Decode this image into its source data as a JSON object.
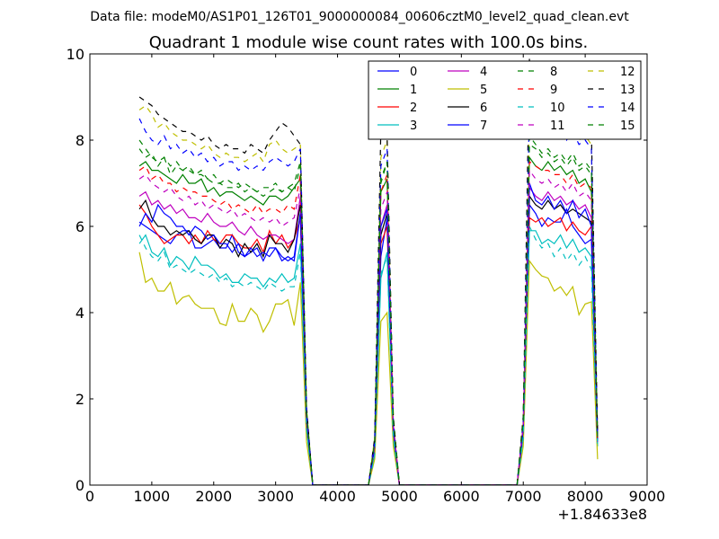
{
  "chart_data": {
    "type": "line",
    "suptitle": "Data file: modeM0/AS1P01_126T01_9000000084_00606cztM0_level2_quad_clean.evt",
    "title": "Quadrant 1 module wise count rates with 100.0s bins.",
    "xlabel": "",
    "ylabel": "",
    "xlim": [
      0,
      9000
    ],
    "ylim": [
      0,
      10
    ],
    "xticks": [
      0,
      1000,
      2000,
      3000,
      4000,
      5000,
      6000,
      7000,
      8000,
      9000
    ],
    "yticks": [
      0,
      2,
      4,
      6,
      8,
      10
    ],
    "x_offset_label": "+1.84633e8",
    "legend_position": "top-right",
    "legend_columns": 4,
    "x": [
      800,
      900,
      1000,
      1100,
      1200,
      1300,
      1400,
      1500,
      1600,
      1700,
      1800,
      1900,
      2000,
      2100,
      2200,
      2300,
      2400,
      2500,
      2600,
      2700,
      2800,
      2900,
      3000,
      3100,
      3200,
      3300,
      3400,
      3500,
      3600,
      4500,
      4600,
      4700,
      4800,
      4900,
      5000,
      6900,
      7000,
      7100,
      7200,
      7300,
      7400,
      7500,
      7600,
      7700,
      7800,
      7900,
      8000,
      8100,
      8200
    ],
    "series": [
      {
        "name": "0",
        "color": "#0000ff",
        "dash": false,
        "values": [
          6.1,
          6.0,
          5.9,
          5.8,
          5.7,
          5.6,
          5.8,
          5.9,
          5.9,
          5.5,
          5.5,
          5.6,
          5.7,
          5.5,
          5.5,
          5.8,
          5.4,
          5.3,
          5.4,
          5.5,
          5.2,
          5.5,
          5.5,
          5.2,
          5.3,
          5.2,
          6.3,
          1.5,
          0,
          0,
          0.8,
          5.3,
          6.2,
          1.2,
          0,
          0,
          1.2,
          6.5,
          6.3,
          6.0,
          6.2,
          6.1,
          6.1,
          6.4,
          6.0,
          5.8,
          5.6,
          5.7,
          1.0
        ]
      },
      {
        "name": "1",
        "color": "#008000",
        "dash": false,
        "values": [
          7.4,
          7.5,
          7.3,
          7.3,
          7.2,
          7.1,
          7.0,
          7.2,
          7.0,
          7.0,
          7.1,
          6.8,
          6.9,
          6.7,
          6.8,
          6.8,
          6.7,
          6.6,
          6.7,
          6.6,
          6.5,
          6.7,
          6.7,
          6.6,
          6.7,
          6.9,
          7.1,
          1.6,
          0,
          0,
          1.0,
          6.8,
          7.1,
          1.4,
          0,
          0,
          1.4,
          7.6,
          7.4,
          7.3,
          7.5,
          7.3,
          7.4,
          7.2,
          7.3,
          7.0,
          7.1,
          6.8,
          1.1
        ]
      },
      {
        "name": "2",
        "color": "#ff0000",
        "dash": false,
        "values": [
          6.5,
          6.3,
          6.0,
          5.8,
          5.6,
          5.7,
          5.8,
          5.8,
          5.6,
          5.8,
          5.6,
          5.9,
          5.7,
          5.6,
          5.8,
          5.8,
          5.6,
          5.5,
          5.5,
          5.7,
          5.4,
          5.9,
          5.6,
          5.8,
          5.5,
          5.7,
          6.2,
          1.5,
          0,
          0,
          0.8,
          5.6,
          6.0,
          1.3,
          0,
          0,
          1.3,
          6.2,
          6.1,
          6.2,
          6.0,
          6.1,
          6.2,
          5.9,
          6.1,
          5.9,
          5.8,
          6.0,
          1.0
        ]
      },
      {
        "name": "3",
        "color": "#00bfbf",
        "dash": false,
        "values": [
          5.6,
          5.8,
          5.4,
          5.3,
          5.5,
          5.1,
          5.3,
          5.2,
          5.0,
          5.3,
          5.1,
          5.1,
          5.0,
          4.8,
          4.9,
          4.7,
          4.7,
          4.9,
          4.8,
          4.8,
          4.6,
          4.8,
          4.7,
          4.9,
          4.7,
          4.8,
          5.6,
          1.3,
          0,
          0,
          0.7,
          4.8,
          5.4,
          1.1,
          0,
          0,
          1.1,
          5.9,
          5.9,
          5.6,
          5.7,
          5.6,
          5.8,
          5.5,
          5.7,
          5.4,
          5.5,
          5.3,
          0.9
        ]
      },
      {
        "name": "4",
        "color": "#bf00bf",
        "dash": false,
        "values": [
          6.7,
          6.8,
          6.5,
          6.6,
          6.4,
          6.5,
          6.3,
          6.4,
          6.2,
          6.2,
          6.1,
          6.3,
          6.1,
          6.0,
          6.0,
          6.1,
          5.9,
          5.8,
          6.0,
          5.8,
          5.7,
          5.8,
          5.8,
          5.7,
          5.6,
          5.7,
          6.7,
          1.6,
          0,
          0,
          0.9,
          6.0,
          6.5,
          1.4,
          0,
          0,
          1.4,
          6.9,
          6.7,
          6.6,
          6.8,
          6.6,
          6.7,
          6.5,
          6.6,
          6.4,
          6.5,
          6.2,
          1.0
        ]
      },
      {
        "name": "5",
        "color": "#bfbf00",
        "dash": false,
        "values": [
          5.4,
          4.7,
          4.8,
          4.5,
          4.5,
          4.7,
          4.2,
          4.35,
          4.4,
          4.2,
          4.1,
          4.1,
          4.1,
          3.75,
          3.7,
          4.2,
          3.8,
          3.8,
          4.1,
          3.95,
          3.55,
          3.8,
          4.2,
          4.2,
          4.3,
          3.7,
          4.7,
          1.0,
          0,
          0,
          0.6,
          3.8,
          4.0,
          0.9,
          0,
          0,
          0.9,
          5.2,
          5.0,
          4.85,
          4.8,
          4.5,
          4.6,
          4.4,
          4.6,
          3.95,
          4.2,
          4.25,
          0.6
        ]
      },
      {
        "name": "6",
        "color": "#000000",
        "dash": false,
        "values": [
          6.4,
          6.6,
          6.2,
          6.0,
          6.0,
          5.8,
          5.9,
          5.8,
          5.9,
          5.7,
          5.6,
          5.8,
          5.8,
          5.5,
          5.7,
          5.6,
          5.3,
          5.6,
          5.4,
          5.6,
          5.3,
          5.8,
          5.6,
          5.6,
          5.4,
          5.7,
          6.5,
          1.5,
          0,
          0,
          0.9,
          5.8,
          6.3,
          1.3,
          0,
          0,
          1.3,
          6.7,
          6.5,
          6.4,
          6.6,
          6.4,
          6.5,
          6.3,
          6.4,
          6.3,
          6.2,
          6.1,
          1.0
        ]
      },
      {
        "name": "7",
        "color": "#0000ff",
        "dash": false,
        "values": [
          6.0,
          6.3,
          6.1,
          6.5,
          6.3,
          6.2,
          6.0,
          6.0,
          5.8,
          6.0,
          5.9,
          5.7,
          5.8,
          5.6,
          5.6,
          5.4,
          5.6,
          5.3,
          5.5,
          5.3,
          5.4,
          5.3,
          5.5,
          5.3,
          5.2,
          5.3,
          6.3,
          1.5,
          0,
          0,
          0.9,
          6.0,
          6.4,
          1.3,
          0,
          0,
          1.3,
          7.0,
          6.6,
          6.5,
          6.7,
          6.4,
          6.6,
          6.3,
          6.6,
          6.2,
          6.4,
          6.0,
          1.0
        ]
      },
      {
        "name": "8",
        "color": "#008000",
        "dash": true,
        "values": [
          7.8,
          7.6,
          7.7,
          7.4,
          7.6,
          7.2,
          7.4,
          7.3,
          7.3,
          7.2,
          7.2,
          7.1,
          7.0,
          7.0,
          6.9,
          6.9,
          7.0,
          6.8,
          6.9,
          6.8,
          6.7,
          6.8,
          6.9,
          6.8,
          6.9,
          6.8,
          7.4,
          1.7,
          0,
          0,
          1.0,
          7.0,
          7.5,
          1.5,
          0,
          0,
          1.5,
          7.9,
          7.8,
          7.6,
          7.7,
          7.5,
          7.6,
          7.4,
          7.6,
          7.3,
          7.4,
          7.2,
          1.1
        ]
      },
      {
        "name": "9",
        "color": "#ff0000",
        "dash": true,
        "values": [
          7.3,
          7.4,
          7.1,
          7.2,
          7.0,
          7.0,
          6.8,
          6.9,
          6.8,
          6.8,
          6.7,
          6.7,
          6.6,
          6.5,
          6.6,
          6.4,
          6.5,
          6.4,
          6.3,
          6.5,
          6.3,
          6.4,
          6.4,
          6.3,
          6.5,
          6.4,
          7.2,
          1.6,
          0,
          0,
          1.0,
          6.8,
          7.2,
          1.4,
          0,
          0,
          1.4,
          7.5,
          7.4,
          7.3,
          7.3,
          7.2,
          7.2,
          7.0,
          7.2,
          6.9,
          7.0,
          6.9,
          1.1
        ]
      },
      {
        "name": "10",
        "color": "#00bfbf",
        "dash": true,
        "values": [
          5.8,
          5.5,
          5.3,
          5.2,
          5.4,
          5.0,
          5.1,
          5.0,
          4.9,
          5.0,
          4.9,
          4.8,
          4.9,
          4.7,
          4.8,
          4.6,
          4.7,
          4.6,
          4.7,
          4.6,
          4.5,
          4.7,
          4.6,
          4.5,
          4.6,
          4.6,
          5.4,
          1.3,
          0,
          0,
          0.7,
          4.9,
          5.3,
          1.1,
          0,
          0,
          1.1,
          6.0,
          5.7,
          5.5,
          5.6,
          5.3,
          5.5,
          5.2,
          5.4,
          5.1,
          5.3,
          5.0,
          0.9
        ]
      },
      {
        "name": "11",
        "color": "#bf00bf",
        "dash": true,
        "values": [
          7.1,
          7.2,
          7.0,
          6.9,
          6.8,
          6.9,
          6.7,
          6.6,
          6.7,
          6.5,
          6.6,
          6.4,
          6.5,
          6.4,
          6.3,
          6.4,
          6.2,
          6.3,
          6.2,
          6.1,
          6.2,
          6.1,
          6.2,
          6.0,
          6.1,
          6.2,
          6.9,
          1.6,
          0,
          0,
          0.9,
          6.4,
          6.8,
          1.4,
          0,
          0,
          1.4,
          7.3,
          7.1,
          7.0,
          7.1,
          6.9,
          7.0,
          6.8,
          7.0,
          6.7,
          6.8,
          6.6,
          1.0
        ]
      },
      {
        "name": "12",
        "color": "#bfbf00",
        "dash": true,
        "values": [
          8.7,
          8.8,
          8.6,
          8.3,
          8.4,
          8.2,
          8.1,
          8.0,
          8.0,
          7.9,
          7.8,
          7.9,
          7.7,
          7.6,
          7.7,
          7.6,
          7.6,
          7.5,
          7.6,
          7.7,
          7.5,
          7.9,
          8.0,
          7.8,
          7.7,
          7.8,
          7.9,
          1.8,
          0,
          0,
          1.1,
          7.6,
          8.0,
          1.6,
          0,
          0,
          1.6,
          8.6,
          8.4,
          8.3,
          8.5,
          8.2,
          8.4,
          8.1,
          8.3,
          8.0,
          8.1,
          7.9,
          1.2
        ]
      },
      {
        "name": "13",
        "color": "#000000",
        "dash": true,
        "values": [
          9.0,
          8.9,
          8.8,
          8.6,
          8.5,
          8.4,
          8.3,
          8.2,
          8.2,
          8.1,
          8.0,
          8.1,
          7.9,
          7.8,
          7.9,
          7.8,
          7.8,
          7.7,
          7.9,
          7.8,
          7.7,
          8.0,
          8.2,
          8.4,
          8.3,
          8.1,
          7.9,
          1.8,
          0,
          0,
          1.1,
          8.3,
          8.1,
          1.6,
          0,
          0,
          1.6,
          9.9,
          9.3,
          9.1,
          9.0,
          8.8,
          8.9,
          8.6,
          8.7,
          8.4,
          8.5,
          8.2,
          1.2
        ]
      },
      {
        "name": "14",
        "color": "#0000ff",
        "dash": true,
        "values": [
          8.5,
          8.2,
          8.0,
          7.9,
          8.1,
          7.8,
          7.9,
          7.7,
          7.8,
          7.6,
          7.7,
          7.5,
          7.6,
          7.4,
          7.5,
          7.5,
          7.3,
          7.4,
          7.3,
          7.4,
          7.3,
          7.5,
          7.6,
          7.5,
          7.4,
          7.5,
          7.8,
          1.7,
          0,
          0,
          1.0,
          7.4,
          7.8,
          1.5,
          0,
          0,
          1.5,
          8.8,
          8.5,
          8.3,
          8.4,
          8.1,
          8.3,
          8.0,
          8.2,
          7.9,
          8.0,
          7.8,
          1.1
        ]
      },
      {
        "name": "15",
        "color": "#008000",
        "dash": true,
        "values": [
          8.0,
          7.8,
          7.6,
          7.5,
          7.6,
          7.4,
          7.5,
          7.3,
          7.4,
          7.2,
          7.3,
          7.1,
          7.2,
          7.0,
          7.1,
          7.0,
          6.9,
          7.0,
          6.9,
          6.8,
          6.9,
          6.9,
          7.0,
          6.8,
          6.9,
          7.0,
          7.5,
          1.7,
          0,
          0,
          1.0,
          7.1,
          7.5,
          1.5,
          0,
          0,
          1.5,
          8.1,
          7.9,
          7.7,
          7.8,
          7.6,
          7.7,
          7.5,
          7.7,
          7.4,
          7.5,
          7.3,
          1.1
        ]
      }
    ]
  }
}
